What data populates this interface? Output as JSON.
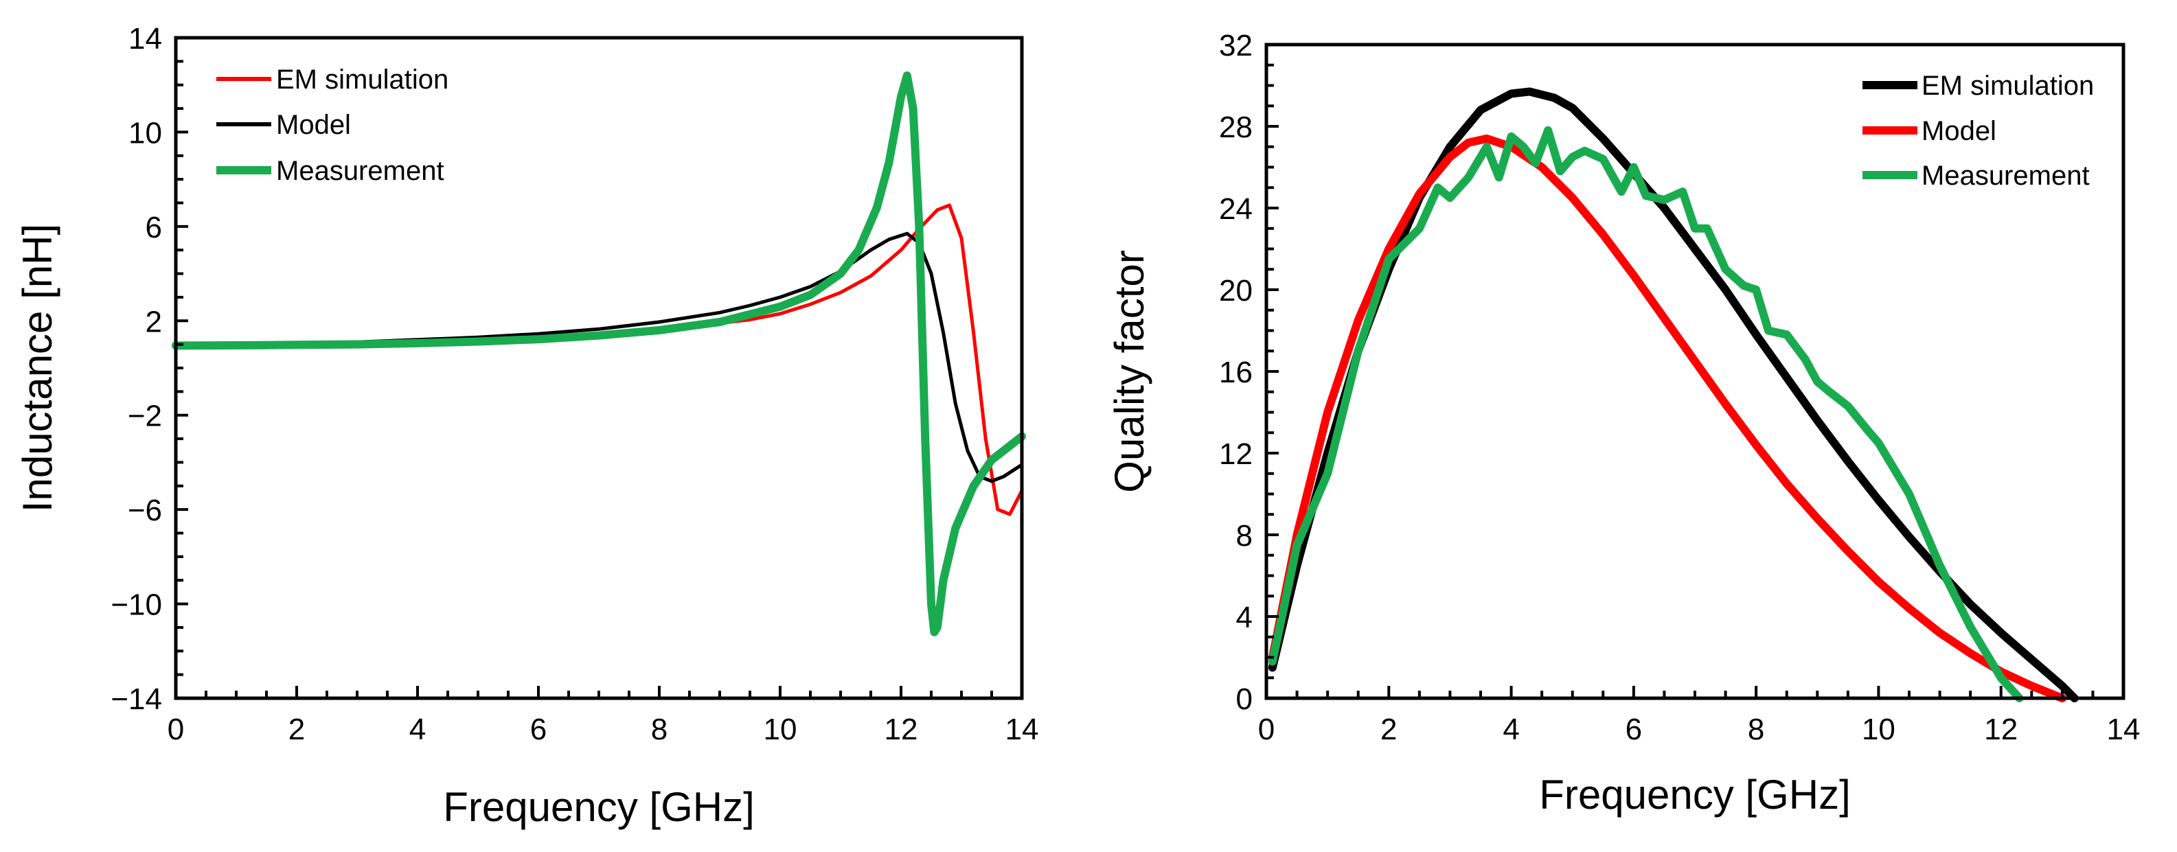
{
  "colors": {
    "red": "#ff0000",
    "black": "#000000",
    "green": "#1aab50"
  },
  "chart_data": [
    {
      "type": "line",
      "xlabel": "Frequency [GHz]",
      "ylabel": "Inductance [nH]",
      "xlim": [
        0,
        14
      ],
      "ylim": [
        -14,
        14
      ],
      "x_ticks": [
        0,
        2,
        4,
        6,
        8,
        10,
        12,
        14
      ],
      "y_ticks": [
        -14,
        -10,
        -6,
        -2,
        2,
        6,
        10,
        14
      ],
      "x_tick_labels": [
        "0",
        "2",
        "4",
        "6",
        "8",
        "10",
        "12",
        "14"
      ],
      "y_tick_labels": [
        "−14",
        "−10",
        "−6",
        "−2",
        "2",
        "6",
        "10",
        "14"
      ],
      "legend_position": "top-left",
      "series": [
        {
          "name": "EM simulation",
          "color": "#ff0000",
          "width": "thin",
          "x": [
            0,
            1,
            2,
            3,
            4,
            5,
            6,
            7,
            8,
            9,
            9.5,
            10,
            10.5,
            11,
            11.5,
            12,
            12.3,
            12.6,
            12.8,
            13,
            13.2,
            13.4,
            13.6,
            13.8,
            14
          ],
          "y": [
            0.97,
            0.98,
            1.0,
            1.05,
            1.1,
            1.2,
            1.3,
            1.45,
            1.65,
            1.9,
            2.05,
            2.3,
            2.7,
            3.2,
            3.9,
            5.0,
            5.9,
            6.7,
            6.9,
            5.5,
            1.5,
            -3.0,
            -6.0,
            -6.2,
            -5.2
          ]
        },
        {
          "name": "Model",
          "color": "#000000",
          "width": "thin",
          "x": [
            0,
            1,
            2,
            3,
            4,
            5,
            6,
            7,
            8,
            9,
            9.5,
            10,
            10.5,
            11,
            11.5,
            11.8,
            12.1,
            12.3,
            12.5,
            12.7,
            12.9,
            13.1,
            13.3,
            13.5,
            13.7,
            14
          ],
          "y": [
            1.0,
            1.02,
            1.05,
            1.1,
            1.2,
            1.3,
            1.45,
            1.65,
            1.95,
            2.35,
            2.65,
            3.0,
            3.45,
            4.1,
            5.0,
            5.45,
            5.7,
            5.3,
            4.0,
            1.5,
            -1.5,
            -3.5,
            -4.6,
            -4.8,
            -4.6,
            -4.1
          ]
        },
        {
          "name": "Measurement",
          "color": "#1aab50",
          "width": "thick",
          "x": [
            0,
            1,
            2,
            3,
            4,
            5,
            6,
            7,
            8,
            9,
            10,
            10.5,
            11,
            11.3,
            11.6,
            11.8,
            12.0,
            12.1,
            12.2,
            12.3,
            12.4,
            12.5,
            12.55,
            12.6,
            12.7,
            12.9,
            13.2,
            13.5,
            13.8,
            14
          ],
          "y": [
            0.95,
            0.96,
            0.98,
            1.0,
            1.05,
            1.12,
            1.22,
            1.38,
            1.6,
            1.95,
            2.6,
            3.1,
            4.0,
            5.0,
            6.8,
            8.7,
            11.5,
            12.4,
            11.0,
            6.0,
            -3.0,
            -10.0,
            -11.2,
            -11.0,
            -9.0,
            -6.8,
            -5.0,
            -3.9,
            -3.3,
            -2.9
          ]
        }
      ]
    },
    {
      "type": "line",
      "xlabel": "Frequency [GHz]",
      "ylabel": "Quality factor",
      "xlim": [
        0,
        14
      ],
      "ylim": [
        0,
        32
      ],
      "x_ticks": [
        0,
        2,
        4,
        6,
        8,
        10,
        12,
        14
      ],
      "y_ticks": [
        0,
        4,
        8,
        12,
        16,
        20,
        24,
        28,
        32
      ],
      "x_tick_labels": [
        "0",
        "2",
        "4",
        "6",
        "8",
        "10",
        "12",
        "14"
      ],
      "y_tick_labels": [
        "0",
        "4",
        "8",
        "12",
        "16",
        "20",
        "24",
        "28",
        "32"
      ],
      "legend_position": "top-right",
      "series": [
        {
          "name": "EM simulation",
          "color": "#000000",
          "width": "thick",
          "x": [
            0.1,
            0.5,
            1,
            1.5,
            2,
            2.5,
            3,
            3.5,
            4,
            4.3,
            4.7,
            5,
            5.5,
            6,
            6.5,
            7,
            7.5,
            8,
            8.5,
            9,
            9.5,
            10,
            10.5,
            11,
            11.5,
            12,
            12.5,
            13,
            13.2
          ],
          "y": [
            1.5,
            6.5,
            12.0,
            17.0,
            21.0,
            24.5,
            27.0,
            28.8,
            29.6,
            29.7,
            29.4,
            28.9,
            27.4,
            25.7,
            24.0,
            22.0,
            20.0,
            17.8,
            15.7,
            13.6,
            11.6,
            9.7,
            7.9,
            6.2,
            4.6,
            3.2,
            1.9,
            0.6,
            0.0
          ]
        },
        {
          "name": "Model",
          "color": "#ff0000",
          "width": "thick",
          "x": [
            0.1,
            0.5,
            1,
            1.5,
            2,
            2.5,
            3,
            3.3,
            3.6,
            4,
            4.5,
            5,
            5.5,
            6,
            6.5,
            7,
            7.5,
            8,
            8.5,
            9,
            9.5,
            10,
            10.5,
            11,
            11.5,
            12,
            12.5,
            13
          ],
          "y": [
            2.0,
            8.0,
            14.0,
            18.5,
            22.0,
            24.7,
            26.5,
            27.2,
            27.4,
            27.0,
            26.0,
            24.5,
            22.7,
            20.7,
            18.6,
            16.5,
            14.4,
            12.4,
            10.5,
            8.8,
            7.2,
            5.7,
            4.4,
            3.2,
            2.2,
            1.3,
            0.6,
            0.0
          ]
        },
        {
          "name": "Measurement",
          "color": "#1aab50",
          "width": "thick",
          "x": [
            0.1,
            0.5,
            1.0,
            1.5,
            2.0,
            2.5,
            2.8,
            3.0,
            3.3,
            3.6,
            3.8,
            4.0,
            4.2,
            4.4,
            4.6,
            4.8,
            5.0,
            5.2,
            5.5,
            5.8,
            6.0,
            6.2,
            6.5,
            6.8,
            7.0,
            7.2,
            7.5,
            7.8,
            8.0,
            8.2,
            8.5,
            8.8,
            9.0,
            9.2,
            9.5,
            9.8,
            10.0,
            10.5,
            11.0,
            11.5,
            12.0,
            12.3
          ],
          "y": [
            1.8,
            7.5,
            11.0,
            17.0,
            21.5,
            23.0,
            25.0,
            24.5,
            25.5,
            27.0,
            25.5,
            27.5,
            27.0,
            26.2,
            27.8,
            25.8,
            26.5,
            26.8,
            26.4,
            24.8,
            26.0,
            24.6,
            24.4,
            24.8,
            23.0,
            23.0,
            21.0,
            20.2,
            20.0,
            18.0,
            17.8,
            16.6,
            15.5,
            15.0,
            14.3,
            13.2,
            12.5,
            10.0,
            6.5,
            3.5,
            1.0,
            0.0
          ]
        }
      ]
    }
  ]
}
